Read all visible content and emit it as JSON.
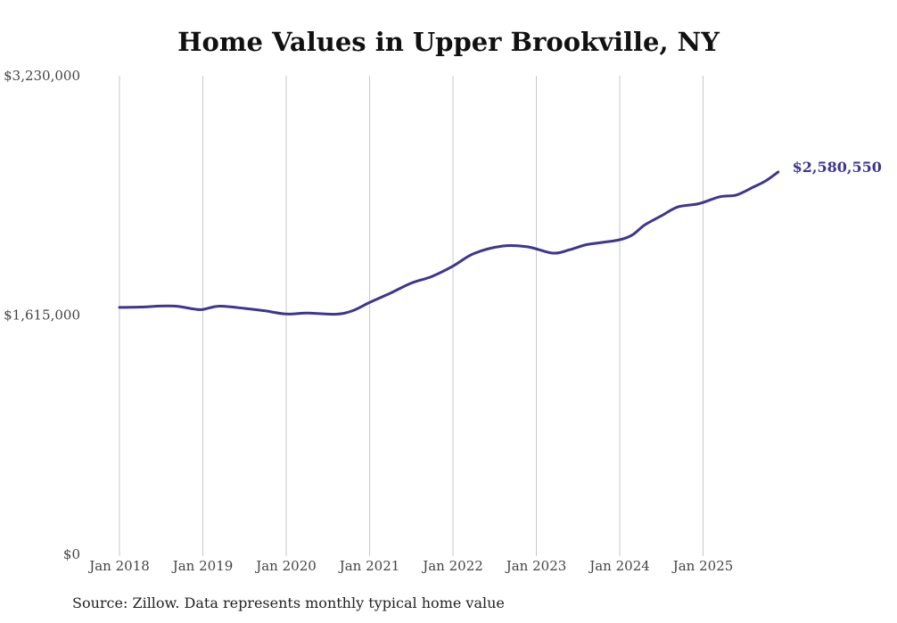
{
  "chart_data": {
    "type": "line",
    "title": "Home Values in Upper Brookville, NY",
    "xlabel": "",
    "ylabel": "",
    "ylim": [
      0,
      3230000
    ],
    "y_ticks": [
      {
        "value": 0,
        "label": "$0"
      },
      {
        "value": 1615000,
        "label": "$1,615,000"
      },
      {
        "value": 3230000,
        "label": "$3,230,000"
      }
    ],
    "x_ticks": [
      {
        "year": 2018,
        "label": "Jan 2018"
      },
      {
        "year": 2019,
        "label": "Jan 2019"
      },
      {
        "year": 2020,
        "label": "Jan 2020"
      },
      {
        "year": 2021,
        "label": "Jan 2021"
      },
      {
        "year": 2022,
        "label": "Jan 2022"
      },
      {
        "year": 2023,
        "label": "Jan 2023"
      },
      {
        "year": 2024,
        "label": "Jan 2024"
      },
      {
        "year": 2025,
        "label": "Jan 2025"
      }
    ],
    "grid": "vertical",
    "series": [
      {
        "name": "Typical home value",
        "color": "#3e3591",
        "points": [
          {
            "x": 2018.0,
            "y": 1667000
          },
          {
            "x": 2018.25,
            "y": 1669000
          },
          {
            "x": 2018.5,
            "y": 1676000
          },
          {
            "x": 2018.7,
            "y": 1674000
          },
          {
            "x": 2018.9,
            "y": 1655000
          },
          {
            "x": 2019.0,
            "y": 1653000
          },
          {
            "x": 2019.2,
            "y": 1675000
          },
          {
            "x": 2019.5,
            "y": 1660000
          },
          {
            "x": 2019.75,
            "y": 1643000
          },
          {
            "x": 2020.0,
            "y": 1622000
          },
          {
            "x": 2020.25,
            "y": 1628000
          },
          {
            "x": 2020.6,
            "y": 1621000
          },
          {
            "x": 2020.8,
            "y": 1645000
          },
          {
            "x": 2021.0,
            "y": 1700000
          },
          {
            "x": 2021.25,
            "y": 1763000
          },
          {
            "x": 2021.5,
            "y": 1831000
          },
          {
            "x": 2021.75,
            "y": 1876000
          },
          {
            "x": 2022.0,
            "y": 1945000
          },
          {
            "x": 2022.25,
            "y": 2030000
          },
          {
            "x": 2022.6,
            "y": 2081000
          },
          {
            "x": 2022.9,
            "y": 2075000
          },
          {
            "x": 2023.2,
            "y": 2033000
          },
          {
            "x": 2023.4,
            "y": 2056000
          },
          {
            "x": 2023.6,
            "y": 2090000
          },
          {
            "x": 2023.8,
            "y": 2106000
          },
          {
            "x": 2024.0,
            "y": 2123000
          },
          {
            "x": 2024.15,
            "y": 2155000
          },
          {
            "x": 2024.3,
            "y": 2223000
          },
          {
            "x": 2024.5,
            "y": 2285000
          },
          {
            "x": 2024.7,
            "y": 2345000
          },
          {
            "x": 2024.95,
            "y": 2367000
          },
          {
            "x": 2025.2,
            "y": 2413000
          },
          {
            "x": 2025.4,
            "y": 2425000
          },
          {
            "x": 2025.6,
            "y": 2478000
          },
          {
            "x": 2025.75,
            "y": 2520000
          },
          {
            "x": 2025.9,
            "y": 2580550
          }
        ]
      }
    ],
    "end_label": "$2,580,550",
    "source": "Source: Zillow. Data represents monthly typical home value"
  }
}
